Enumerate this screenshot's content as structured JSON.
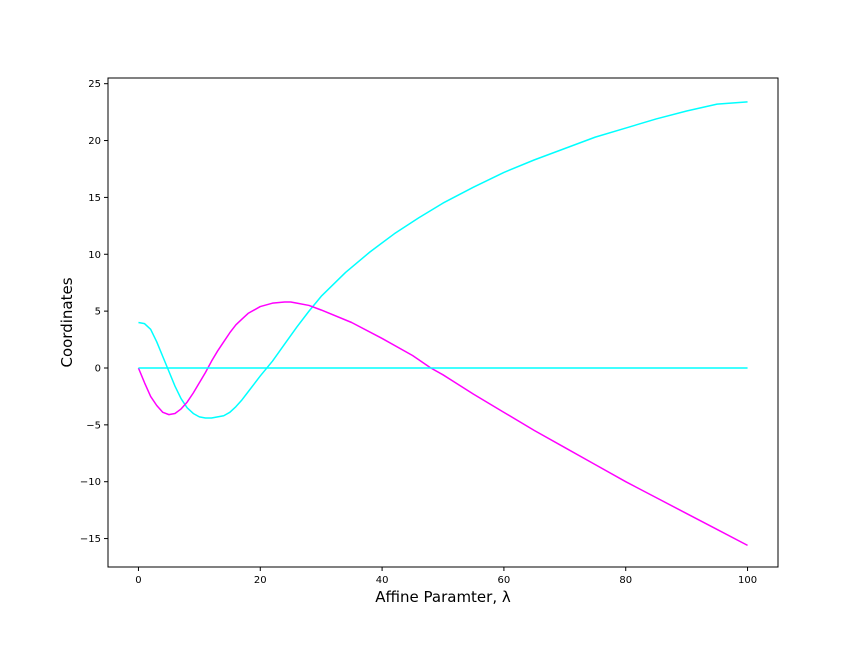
{
  "chart_data": {
    "type": "line",
    "title": "",
    "xlabel": "Affine Paramter, λ",
    "ylabel": "Coordinates",
    "xlim": [
      -5,
      105
    ],
    "ylim": [
      -17.5,
      25.5
    ],
    "xticks": [
      0,
      20,
      40,
      60,
      80,
      100
    ],
    "yticks": [
      -15,
      -10,
      -5,
      0,
      5,
      10,
      15,
      20,
      25
    ],
    "xtick_labels": [
      "0",
      "20",
      "40",
      "60",
      "80",
      "100"
    ],
    "ytick_labels": [
      "−15",
      "−10",
      "−5",
      "0",
      "5",
      "10",
      "15",
      "20",
      "25"
    ],
    "grid": false,
    "legend": "none",
    "series": [
      {
        "color": "#00ffff",
        "x": [
          0,
          1,
          2,
          3,
          4,
          5,
          6,
          7,
          8,
          9,
          10,
          11,
          12,
          13,
          14,
          15,
          16,
          17,
          18,
          19,
          20,
          22,
          24,
          26,
          28,
          30,
          34,
          38,
          42,
          46,
          50,
          55,
          60,
          65,
          70,
          75,
          80,
          85,
          90,
          95,
          100
        ],
        "y": [
          4.0,
          3.9,
          3.4,
          2.3,
          1.0,
          -0.3,
          -1.6,
          -2.7,
          -3.5,
          -4.0,
          -4.3,
          -4.4,
          -4.4,
          -4.3,
          -4.2,
          -3.9,
          -3.4,
          -2.8,
          -2.1,
          -1.4,
          -0.7,
          0.6,
          2.1,
          3.6,
          5.0,
          6.3,
          8.4,
          10.2,
          11.8,
          13.2,
          14.5,
          15.9,
          17.2,
          18.3,
          19.3,
          20.3,
          21.1,
          21.9,
          22.6,
          23.2,
          23.4
        ]
      },
      {
        "color": "#ff00ff",
        "x": [
          0,
          1,
          2,
          3,
          4,
          5,
          6,
          7,
          8,
          9,
          10,
          11,
          12,
          13,
          14,
          15,
          16,
          17,
          18,
          20,
          22,
          24,
          25,
          26,
          28,
          30,
          35,
          40,
          45,
          48,
          50,
          55,
          60,
          65,
          70,
          75,
          80,
          85,
          90,
          95,
          100
        ],
        "y": [
          0.0,
          -1.3,
          -2.5,
          -3.3,
          -3.9,
          -4.1,
          -4.0,
          -3.6,
          -3.0,
          -2.2,
          -1.3,
          -0.4,
          0.6,
          1.5,
          2.3,
          3.1,
          3.8,
          4.3,
          4.8,
          5.4,
          5.7,
          5.8,
          5.8,
          5.7,
          5.5,
          5.1,
          4.0,
          2.6,
          1.1,
          0.0,
          -0.6,
          -2.3,
          -3.9,
          -5.5,
          -7.0,
          -8.5,
          -10.0,
          -11.4,
          -12.8,
          -14.2,
          -15.6
        ]
      },
      {
        "color": "#00ffff",
        "x": [
          0,
          100
        ],
        "y": [
          0,
          0
        ]
      }
    ]
  }
}
